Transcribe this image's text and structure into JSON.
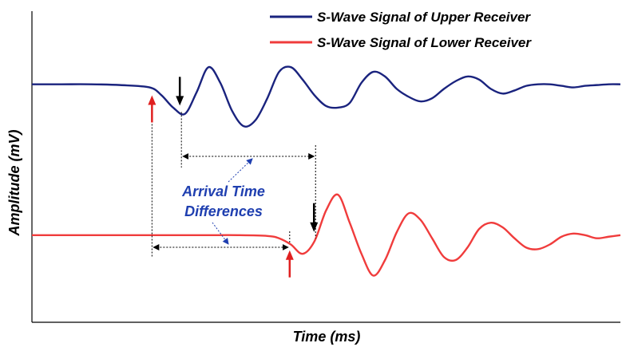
{
  "chart_data": {
    "type": "line",
    "xlabel": "Time (ms)",
    "ylabel": "Amplitude (mV)",
    "xlim": [
      0,
      100
    ],
    "ylim": [
      -10,
      10
    ],
    "grid": false,
    "legend_position": "top-right",
    "series": [
      {
        "name": "S-Wave Signal of Upper Receiver",
        "color": "#1a237e",
        "x": [
          0,
          5,
          10,
          15,
          20,
          22,
          24,
          26,
          28,
          30,
          32,
          34,
          36,
          38,
          40,
          42,
          44,
          46,
          48,
          50,
          52,
          54,
          56,
          58,
          60,
          62,
          64,
          66,
          68,
          70,
          72,
          74,
          76,
          78,
          80,
          82,
          84,
          86,
          88,
          90,
          92,
          94,
          96,
          98,
          100
        ],
        "y": [
          5.3,
          5.3,
          5.3,
          5.25,
          5.1,
          4.6,
          3.8,
          3.4,
          4.8,
          6.4,
          5.4,
          3.6,
          2.6,
          3.0,
          4.4,
          6.1,
          6.4,
          5.6,
          4.6,
          3.9,
          3.8,
          4.1,
          5.4,
          6.1,
          5.8,
          5.0,
          4.5,
          4.2,
          4.4,
          5.0,
          5.5,
          5.8,
          5.6,
          5.0,
          4.7,
          4.9,
          5.2,
          5.3,
          5.3,
          5.2,
          5.1,
          5.2,
          5.25,
          5.3,
          5.3
        ]
      },
      {
        "name": "S-Wave Signal of Lower Receiver",
        "color": "#f03c3c",
        "x": [
          0,
          5,
          10,
          15,
          20,
          25,
          30,
          35,
          40,
          42,
          44,
          46,
          48,
          50,
          52,
          54,
          56,
          58,
          60,
          62,
          64,
          66,
          68,
          70,
          72,
          74,
          76,
          78,
          80,
          82,
          84,
          86,
          88,
          90,
          92,
          94,
          96,
          98,
          100
        ],
        "y": [
          -4.4,
          -4.4,
          -4.4,
          -4.4,
          -4.4,
          -4.4,
          -4.4,
          -4.4,
          -4.45,
          -4.6,
          -5.0,
          -5.6,
          -4.8,
          -2.8,
          -1.8,
          -3.6,
          -5.6,
          -7.0,
          -6.0,
          -4.2,
          -3.0,
          -3.4,
          -4.6,
          -5.8,
          -6.0,
          -5.2,
          -4.0,
          -3.6,
          -3.9,
          -4.6,
          -5.2,
          -5.3,
          -5.0,
          -4.5,
          -4.3,
          -4.4,
          -4.6,
          -4.5,
          -4.4
        ]
      }
    ],
    "annotations": {
      "text_line1": "Arrival Time",
      "text_line2": "Differences",
      "color": "#1f3fb0",
      "first_arrival": {
        "upper_x": 20.4,
        "lower_x": 43.8
      },
      "peak_arrival": {
        "upper_x": 25.4,
        "lower_x": 48.2
      }
    }
  }
}
